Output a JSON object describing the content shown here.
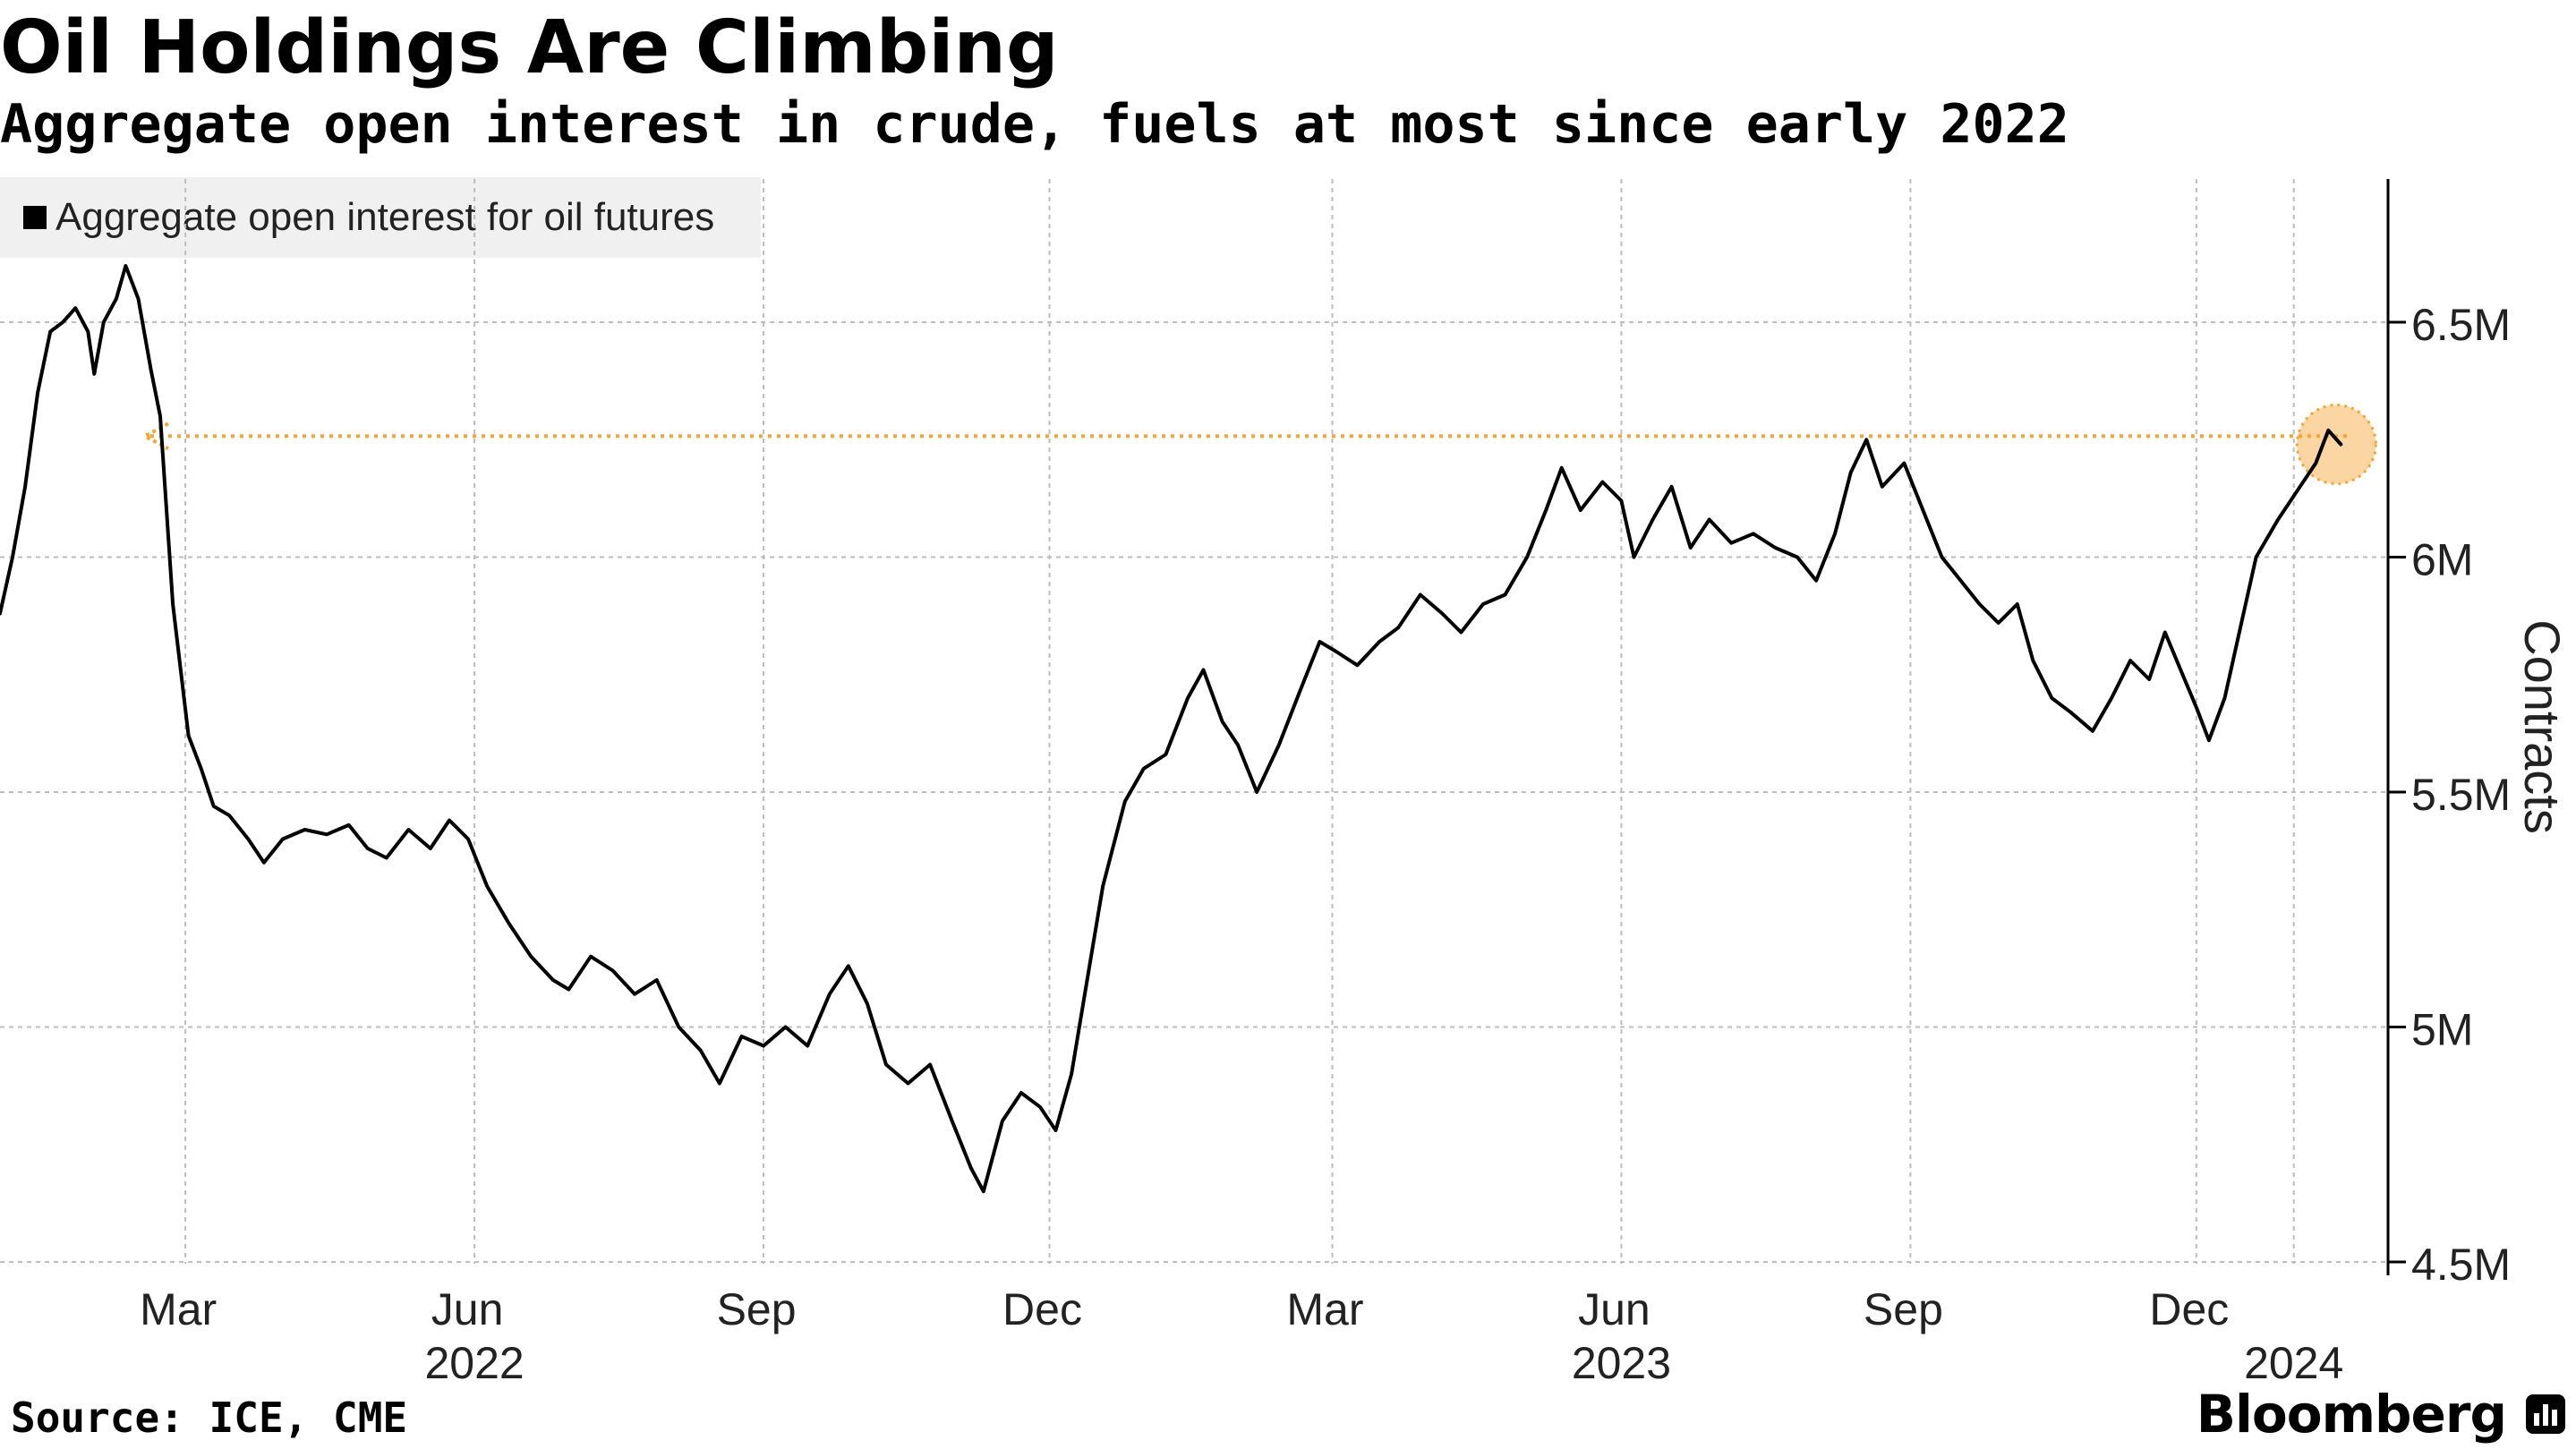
{
  "header": {
    "title": "Oil Holdings Are Climbing",
    "subtitle": "Aggregate open interest in crude, fuels at most since early 2022"
  },
  "footer": {
    "source": "Source: ICE, CME",
    "brand": "Bloomberg"
  },
  "colors": {
    "line": "#000000",
    "highlight": "#f7a531",
    "grid": "#bdbdbd",
    "legend_bg": "#f0f0f0"
  },
  "chart_data": {
    "type": "line",
    "title": "Oil Holdings Are Climbing",
    "subtitle": "Aggregate open interest in crude, fuels at most since early 2022",
    "legend": [
      "Aggregate open interest for oil futures"
    ],
    "xlabel": "",
    "ylabel": "Contracts",
    "y_unit": "million contracts",
    "ylim": [
      4.5,
      6.75
    ],
    "yticks": [
      4.5,
      5.0,
      5.5,
      6.0,
      6.5
    ],
    "ytick_labels": [
      "4.5M",
      "5M",
      "5.5M",
      "6M",
      "6.5M"
    ],
    "xlim": [
      "2022-01-01",
      "2024-01-31"
    ],
    "xticks": [
      {
        "date": "2022-03-01",
        "label": "Mar",
        "year": ""
      },
      {
        "date": "2022-06-01",
        "label": "Jun",
        "year": "2022"
      },
      {
        "date": "2022-09-01",
        "label": "Sep",
        "year": ""
      },
      {
        "date": "2022-12-01",
        "label": "Dec",
        "year": ""
      },
      {
        "date": "2023-03-01",
        "label": "Mar",
        "year": ""
      },
      {
        "date": "2023-06-01",
        "label": "Jun",
        "year": "2023"
      },
      {
        "date": "2023-09-01",
        "label": "Sep",
        "year": ""
      },
      {
        "date": "2023-12-01",
        "label": "Dec",
        "year": ""
      },
      {
        "date": "2024-01-01",
        "label": "",
        "year": "2024"
      }
    ],
    "grid": true,
    "legend_position": "top-left",
    "annotation": {
      "type": "reference-arrow",
      "value": 6.25,
      "from_date": "2024-01-25",
      "to_date": "2022-02-15",
      "note": "current level highlighted and compared with early 2022 level"
    },
    "series": [
      {
        "name": "Aggregate open interest for oil futures",
        "points": [
          [
            "2022-01-01",
            5.88
          ],
          [
            "2022-01-05",
            6.0
          ],
          [
            "2022-01-09",
            6.15
          ],
          [
            "2022-01-13",
            6.35
          ],
          [
            "2022-01-17",
            6.48
          ],
          [
            "2022-01-21",
            6.5
          ],
          [
            "2022-01-25",
            6.53
          ],
          [
            "2022-01-29",
            6.48
          ],
          [
            "2022-01-31",
            6.39
          ],
          [
            "2022-02-03",
            6.5
          ],
          [
            "2022-02-07",
            6.55
          ],
          [
            "2022-02-10",
            6.62
          ],
          [
            "2022-02-14",
            6.55
          ],
          [
            "2022-02-18",
            6.4
          ],
          [
            "2022-02-21",
            6.3
          ],
          [
            "2022-02-25",
            5.9
          ],
          [
            "2022-03-02",
            5.62
          ],
          [
            "2022-03-06",
            5.55
          ],
          [
            "2022-03-10",
            5.47
          ],
          [
            "2022-03-15",
            5.45
          ],
          [
            "2022-03-21",
            5.4
          ],
          [
            "2022-03-26",
            5.35
          ],
          [
            "2022-04-01",
            5.4
          ],
          [
            "2022-04-08",
            5.42
          ],
          [
            "2022-04-15",
            5.41
          ],
          [
            "2022-04-22",
            5.43
          ],
          [
            "2022-04-28",
            5.38
          ],
          [
            "2022-05-04",
            5.36
          ],
          [
            "2022-05-11",
            5.42
          ],
          [
            "2022-05-18",
            5.38
          ],
          [
            "2022-05-24",
            5.44
          ],
          [
            "2022-05-30",
            5.4
          ],
          [
            "2022-06-05",
            5.3
          ],
          [
            "2022-06-12",
            5.22
          ],
          [
            "2022-06-19",
            5.15
          ],
          [
            "2022-06-26",
            5.1
          ],
          [
            "2022-07-01",
            5.08
          ],
          [
            "2022-07-08",
            5.15
          ],
          [
            "2022-07-15",
            5.12
          ],
          [
            "2022-07-22",
            5.07
          ],
          [
            "2022-07-29",
            5.1
          ],
          [
            "2022-08-05",
            5.0
          ],
          [
            "2022-08-12",
            4.95
          ],
          [
            "2022-08-18",
            4.88
          ],
          [
            "2022-08-25",
            4.98
          ],
          [
            "2022-09-01",
            4.96
          ],
          [
            "2022-09-08",
            5.0
          ],
          [
            "2022-09-15",
            4.96
          ],
          [
            "2022-09-22",
            5.07
          ],
          [
            "2022-09-28",
            5.13
          ],
          [
            "2022-10-04",
            5.05
          ],
          [
            "2022-10-10",
            4.92
          ],
          [
            "2022-10-17",
            4.88
          ],
          [
            "2022-10-24",
            4.92
          ],
          [
            "2022-10-31",
            4.8
          ],
          [
            "2022-11-06",
            4.7
          ],
          [
            "2022-11-10",
            4.65
          ],
          [
            "2022-11-16",
            4.8
          ],
          [
            "2022-11-22",
            4.86
          ],
          [
            "2022-11-28",
            4.83
          ],
          [
            "2022-12-03",
            4.78
          ],
          [
            "2022-12-08",
            4.9
          ],
          [
            "2022-12-13",
            5.1
          ],
          [
            "2022-12-18",
            5.3
          ],
          [
            "2022-12-25",
            5.48
          ],
          [
            "2022-12-31",
            5.55
          ],
          [
            "2023-01-07",
            5.58
          ],
          [
            "2023-01-14",
            5.7
          ],
          [
            "2023-01-19",
            5.76
          ],
          [
            "2023-01-25",
            5.65
          ],
          [
            "2023-01-30",
            5.6
          ],
          [
            "2023-02-05",
            5.5
          ],
          [
            "2023-02-12",
            5.6
          ],
          [
            "2023-02-19",
            5.72
          ],
          [
            "2023-02-25",
            5.82
          ],
          [
            "2023-03-02",
            5.8
          ],
          [
            "2023-03-09",
            5.77
          ],
          [
            "2023-03-16",
            5.82
          ],
          [
            "2023-03-22",
            5.85
          ],
          [
            "2023-03-29",
            5.92
          ],
          [
            "2023-04-05",
            5.88
          ],
          [
            "2023-04-11",
            5.84
          ],
          [
            "2023-04-18",
            5.9
          ],
          [
            "2023-04-25",
            5.92
          ],
          [
            "2023-05-02",
            6.0
          ],
          [
            "2023-05-08",
            6.1
          ],
          [
            "2023-05-13",
            6.19
          ],
          [
            "2023-05-19",
            6.1
          ],
          [
            "2023-05-26",
            6.16
          ],
          [
            "2023-06-01",
            6.12
          ],
          [
            "2023-06-05",
            6.0
          ],
          [
            "2023-06-11",
            6.08
          ],
          [
            "2023-06-17",
            6.15
          ],
          [
            "2023-06-23",
            6.02
          ],
          [
            "2023-06-29",
            6.08
          ],
          [
            "2023-07-06",
            6.03
          ],
          [
            "2023-07-13",
            6.05
          ],
          [
            "2023-07-20",
            6.02
          ],
          [
            "2023-07-27",
            6.0
          ],
          [
            "2023-08-02",
            5.95
          ],
          [
            "2023-08-08",
            6.05
          ],
          [
            "2023-08-13",
            6.18
          ],
          [
            "2023-08-18",
            6.25
          ],
          [
            "2023-08-23",
            6.15
          ],
          [
            "2023-08-30",
            6.2
          ],
          [
            "2023-09-05",
            6.1
          ],
          [
            "2023-09-11",
            6.0
          ],
          [
            "2023-09-17",
            5.95
          ],
          [
            "2023-09-23",
            5.9
          ],
          [
            "2023-09-29",
            5.86
          ],
          [
            "2023-10-05",
            5.9
          ],
          [
            "2023-10-10",
            5.78
          ],
          [
            "2023-10-16",
            5.7
          ],
          [
            "2023-10-22",
            5.67
          ],
          [
            "2023-10-29",
            5.63
          ],
          [
            "2023-11-04",
            5.7
          ],
          [
            "2023-11-10",
            5.78
          ],
          [
            "2023-11-16",
            5.74
          ],
          [
            "2023-11-21",
            5.84
          ],
          [
            "2023-11-26",
            5.76
          ],
          [
            "2023-12-01",
            5.68
          ],
          [
            "2023-12-05",
            5.61
          ],
          [
            "2023-12-10",
            5.7
          ],
          [
            "2023-12-15",
            5.85
          ],
          [
            "2023-12-20",
            6.0
          ],
          [
            "2023-12-27",
            6.08
          ],
          [
            "2024-01-03",
            6.15
          ],
          [
            "2024-01-08",
            6.2
          ],
          [
            "2024-01-12",
            6.27
          ],
          [
            "2024-01-16",
            6.24
          ]
        ]
      }
    ]
  }
}
